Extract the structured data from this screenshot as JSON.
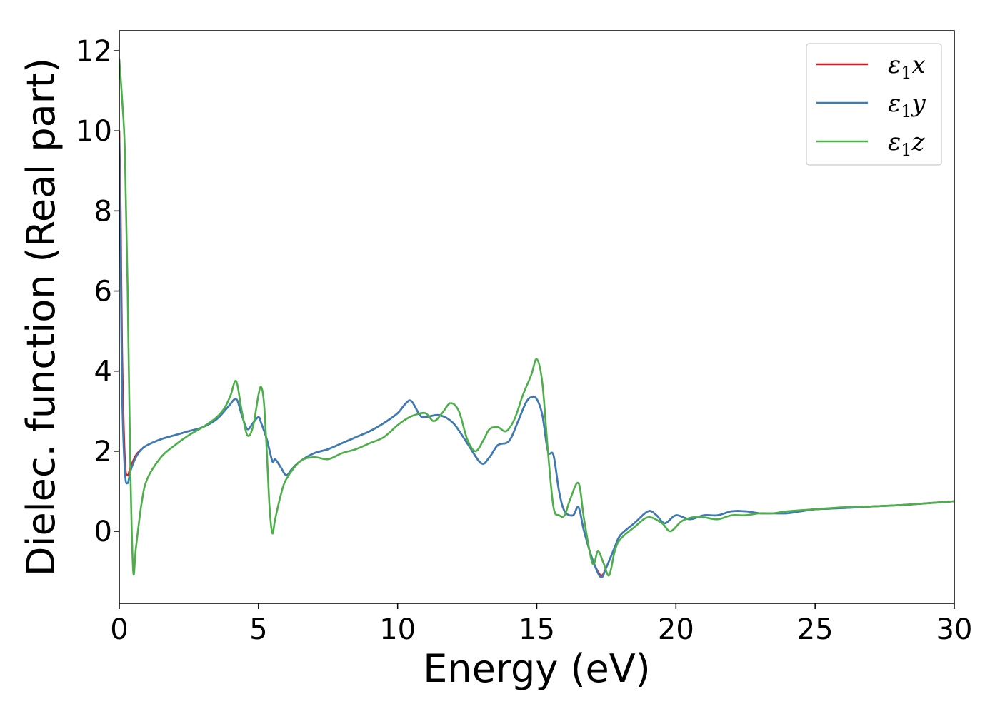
{
  "chart_data": {
    "type": "line",
    "title": "",
    "xlabel": "Energy (eV)",
    "ylabel": "Dielec. function (Real part)",
    "xlim": [
      0,
      30
    ],
    "ylim": [
      -1.8,
      12.5
    ],
    "xticks": [
      0,
      5,
      10,
      15,
      20,
      25,
      30
    ],
    "xtick_labels": [
      "0",
      "5",
      "10",
      "15",
      "20",
      "25",
      "30"
    ],
    "yticks": [
      0,
      2,
      4,
      6,
      8,
      10,
      12
    ],
    "ytick_labels": [
      "0",
      "2",
      "4",
      "6",
      "8",
      "10",
      "12"
    ],
    "grid": false,
    "legend_position": "top-right",
    "series": [
      {
        "name": "ε1x",
        "legend_main": "ε",
        "legend_sub": "1",
        "legend_var": "x",
        "color": "#e41a1c",
        "x": [
          0.0,
          0.05,
          0.1,
          0.2,
          0.3,
          0.4,
          0.6,
          0.8,
          1.0,
          1.5,
          2.0,
          2.5,
          3.0,
          3.5,
          3.9,
          4.2,
          4.4,
          4.6,
          4.8,
          5.0,
          5.1,
          5.3,
          5.5,
          5.6,
          5.8,
          6.0,
          6.2,
          6.5,
          7.0,
          7.5,
          8.0,
          8.5,
          9.0,
          9.5,
          10.0,
          10.3,
          10.5,
          10.8,
          11.0,
          11.5,
          12.0,
          12.5,
          13.0,
          13.3,
          13.6,
          14.0,
          14.3,
          14.6,
          14.8,
          15.0,
          15.2,
          15.4,
          15.6,
          15.8,
          16.0,
          16.3,
          16.5,
          16.7,
          17.0,
          17.3,
          17.5,
          17.8,
          18.0,
          18.5,
          19.0,
          19.3,
          19.6,
          20.0,
          20.5,
          21.0,
          21.5,
          22.0,
          22.5,
          23.0,
          23.5,
          24.0,
          24.5,
          25.0,
          26.0,
          27.0,
          28.0,
          29.0,
          30.0
        ],
        "y": [
          10.0,
          8.0,
          4.5,
          1.8,
          1.4,
          1.6,
          1.9,
          2.05,
          2.15,
          2.3,
          2.4,
          2.5,
          2.6,
          2.8,
          3.1,
          3.3,
          2.9,
          2.55,
          2.7,
          2.85,
          2.7,
          2.3,
          1.75,
          1.8,
          1.6,
          1.4,
          1.55,
          1.75,
          1.95,
          2.05,
          2.2,
          2.35,
          2.5,
          2.7,
          2.95,
          3.2,
          3.25,
          2.9,
          2.85,
          2.9,
          2.7,
          2.2,
          1.7,
          1.85,
          2.15,
          2.25,
          2.7,
          3.2,
          3.35,
          3.3,
          2.9,
          2.0,
          1.9,
          1.0,
          0.5,
          0.4,
          0.6,
          0.0,
          -0.7,
          -1.1,
          -0.9,
          -0.4,
          -0.1,
          0.2,
          0.5,
          0.4,
          0.2,
          0.4,
          0.3,
          0.4,
          0.4,
          0.5,
          0.5,
          0.45,
          0.45,
          0.45,
          0.5,
          0.55,
          0.58,
          0.62,
          0.65,
          0.7,
          0.75
        ]
      },
      {
        "name": "ε1y",
        "legend_main": "ε",
        "legend_sub": "1",
        "legend_var": "y",
        "color": "#377eb8",
        "x": [
          0.0,
          0.05,
          0.1,
          0.2,
          0.3,
          0.4,
          0.6,
          0.8,
          1.0,
          1.5,
          2.0,
          2.5,
          3.0,
          3.5,
          3.9,
          4.2,
          4.4,
          4.6,
          4.8,
          5.0,
          5.1,
          5.3,
          5.5,
          5.6,
          5.8,
          6.0,
          6.2,
          6.5,
          7.0,
          7.5,
          8.0,
          8.5,
          9.0,
          9.5,
          10.0,
          10.3,
          10.5,
          10.8,
          11.0,
          11.5,
          12.0,
          12.5,
          13.0,
          13.3,
          13.6,
          14.0,
          14.3,
          14.6,
          14.8,
          15.0,
          15.2,
          15.4,
          15.6,
          15.8,
          16.0,
          16.3,
          16.5,
          16.7,
          17.0,
          17.3,
          17.5,
          17.8,
          18.0,
          18.5,
          19.0,
          19.3,
          19.6,
          20.0,
          20.5,
          21.0,
          21.5,
          22.0,
          22.5,
          23.0,
          23.5,
          24.0,
          24.5,
          25.0,
          26.0,
          27.0,
          28.0,
          29.0,
          30.0
        ],
        "y": [
          9.8,
          7.0,
          3.5,
          1.5,
          1.2,
          1.5,
          1.85,
          2.05,
          2.15,
          2.3,
          2.4,
          2.5,
          2.6,
          2.8,
          3.1,
          3.3,
          2.9,
          2.55,
          2.7,
          2.85,
          2.7,
          2.3,
          1.75,
          1.8,
          1.6,
          1.4,
          1.55,
          1.75,
          1.95,
          2.05,
          2.2,
          2.35,
          2.5,
          2.7,
          2.95,
          3.2,
          3.25,
          2.9,
          2.85,
          2.9,
          2.7,
          2.2,
          1.7,
          1.85,
          2.15,
          2.25,
          2.7,
          3.2,
          3.35,
          3.3,
          2.9,
          2.0,
          1.9,
          1.0,
          0.5,
          0.4,
          0.6,
          0.0,
          -0.7,
          -1.15,
          -0.9,
          -0.4,
          -0.1,
          0.2,
          0.5,
          0.4,
          0.2,
          0.4,
          0.3,
          0.4,
          0.4,
          0.5,
          0.5,
          0.45,
          0.45,
          0.45,
          0.5,
          0.55,
          0.58,
          0.62,
          0.65,
          0.7,
          0.75
        ]
      },
      {
        "name": "ε1z",
        "legend_main": "ε",
        "legend_sub": "1",
        "legend_var": "z",
        "color": "#4daf4a",
        "x": [
          0.0,
          0.1,
          0.2,
          0.3,
          0.4,
          0.5,
          0.6,
          0.8,
          1.0,
          1.5,
          2.0,
          2.5,
          3.0,
          3.5,
          3.8,
          4.0,
          4.2,
          4.4,
          4.6,
          4.8,
          5.0,
          5.1,
          5.2,
          5.3,
          5.4,
          5.5,
          5.6,
          5.8,
          6.0,
          6.5,
          7.0,
          7.5,
          8.0,
          8.5,
          9.0,
          9.5,
          10.0,
          10.3,
          10.6,
          11.0,
          11.3,
          11.6,
          11.9,
          12.2,
          12.5,
          12.8,
          13.1,
          13.3,
          13.6,
          13.9,
          14.2,
          14.5,
          14.8,
          15.0,
          15.2,
          15.4,
          15.6,
          15.8,
          16.0,
          16.2,
          16.5,
          16.7,
          17.0,
          17.2,
          17.4,
          17.6,
          17.8,
          18.0,
          18.5,
          19.0,
          19.5,
          19.8,
          20.2,
          20.6,
          21.0,
          21.5,
          22.0,
          22.5,
          23.0,
          23.5,
          24.0,
          25.0,
          26.0,
          27.0,
          28.0,
          29.0,
          30.0
        ],
        "y": [
          11.8,
          10.8,
          9.5,
          6.0,
          1.5,
          -1.0,
          -0.4,
          0.7,
          1.3,
          1.85,
          2.15,
          2.4,
          2.6,
          2.85,
          3.1,
          3.4,
          3.75,
          3.0,
          2.4,
          2.6,
          3.4,
          3.6,
          3.2,
          2.0,
          0.6,
          -0.05,
          0.3,
          0.9,
          1.3,
          1.75,
          1.85,
          1.8,
          1.95,
          2.05,
          2.2,
          2.35,
          2.65,
          2.8,
          2.9,
          2.95,
          2.75,
          2.95,
          3.2,
          3.0,
          2.3,
          2.0,
          2.3,
          2.55,
          2.6,
          2.5,
          2.8,
          3.4,
          3.9,
          4.3,
          3.7,
          2.0,
          0.6,
          0.4,
          0.4,
          0.8,
          1.2,
          0.3,
          -0.8,
          -0.5,
          -0.8,
          -1.1,
          -0.5,
          -0.2,
          0.1,
          0.35,
          0.2,
          0.0,
          0.25,
          0.35,
          0.35,
          0.3,
          0.4,
          0.4,
          0.45,
          0.45,
          0.5,
          0.55,
          0.6,
          0.62,
          0.65,
          0.7,
          0.75
        ]
      }
    ]
  }
}
